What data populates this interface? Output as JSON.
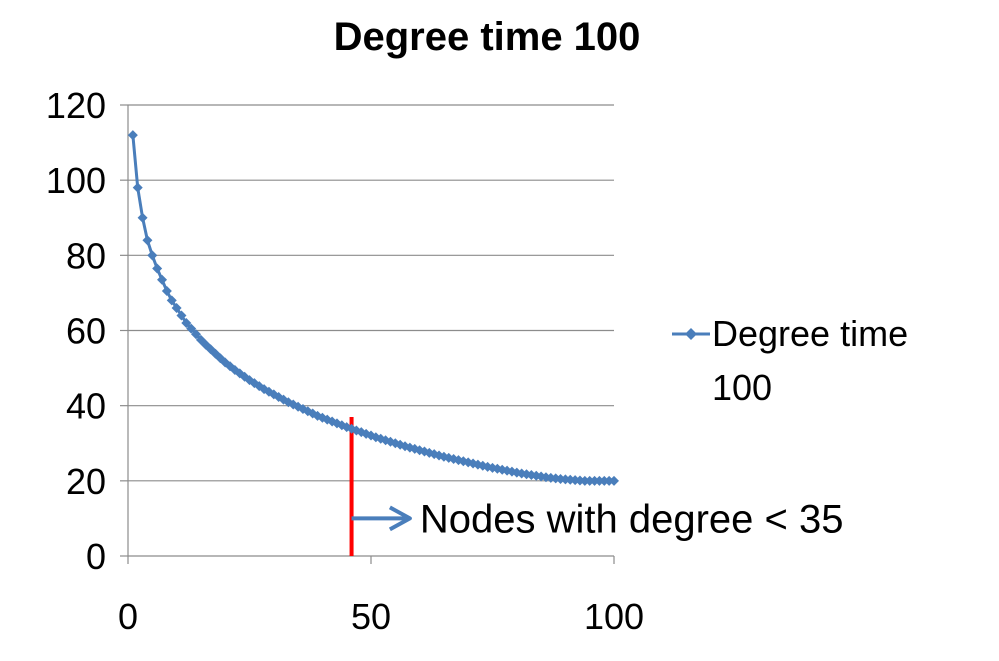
{
  "chart_data": {
    "type": "line",
    "title": "Degree time 100",
    "xlabel": "",
    "ylabel": "",
    "xlim": [
      0,
      100
    ],
    "ylim": [
      0,
      120
    ],
    "x_ticks": [
      0,
      50,
      100
    ],
    "y_ticks": [
      0,
      20,
      40,
      60,
      80,
      100,
      120
    ],
    "grid": "horizontal",
    "legend_position": "right",
    "series": [
      {
        "name": "Degree time 100",
        "color": "#4a7ebb",
        "marker": "diamond",
        "x": [
          1,
          2,
          3,
          4,
          5,
          6,
          7,
          8,
          9,
          10,
          11,
          12,
          13,
          14,
          15,
          16,
          17,
          18,
          19,
          20,
          21,
          22,
          23,
          24,
          25,
          26,
          27,
          28,
          29,
          30,
          31,
          32,
          33,
          34,
          35,
          36,
          37,
          38,
          39,
          40,
          41,
          42,
          43,
          44,
          45,
          46,
          47,
          48,
          49,
          50,
          51,
          52,
          53,
          54,
          55,
          56,
          57,
          58,
          59,
          60,
          61,
          62,
          63,
          64,
          65,
          66,
          67,
          68,
          69,
          70,
          71,
          72,
          73,
          74,
          75,
          76,
          77,
          78,
          79,
          80,
          81,
          82,
          83,
          84,
          85,
          86,
          87,
          88,
          89,
          90,
          91,
          92,
          93,
          94,
          95,
          96,
          97,
          98,
          99,
          100
        ],
        "y": [
          112,
          98,
          90,
          84,
          80,
          76.5,
          73.5,
          70.5,
          68,
          66,
          64,
          62,
          60.5,
          59,
          57.5,
          56.2,
          55,
          53.8,
          52.6,
          51.5,
          50.5,
          49.5,
          48.6,
          47.7,
          46.8,
          46,
          45.2,
          44.4,
          43.7,
          43,
          42.3,
          41.6,
          40.9,
          40.3,
          39.7,
          39.1,
          38.5,
          37.9,
          37.3,
          36.8,
          36.3,
          35.8,
          35.3,
          34.8,
          34.3,
          33.85,
          33.4,
          32.95,
          32.5,
          32.05,
          31.6,
          31.2,
          30.8,
          30.4,
          30,
          29.6,
          29.2,
          28.85,
          28.5,
          28.15,
          27.8,
          27.45,
          27.1,
          26.75,
          26.4,
          26.1,
          25.8,
          25.5,
          25.2,
          24.9,
          24.6,
          24.3,
          24,
          23.7,
          23.45,
          23.2,
          22.95,
          22.7,
          22.45,
          22.2,
          21.95,
          21.75,
          21.55,
          21.35,
          21.15,
          20.95,
          20.8,
          20.65,
          20.5,
          20.4,
          20.3,
          20.2,
          20.1,
          20,
          20,
          20,
          20,
          20,
          20,
          20
        ]
      }
    ],
    "annotations": [
      {
        "type": "vertical_line",
        "x": 46,
        "y_range": [
          0,
          37
        ],
        "color": "#ff0000"
      },
      {
        "type": "arrow_label",
        "text": "Nodes with degree < 35",
        "from_x": 46,
        "to_x": 58,
        "y": 10,
        "arrow_color": "#4a7ebb"
      }
    ]
  }
}
